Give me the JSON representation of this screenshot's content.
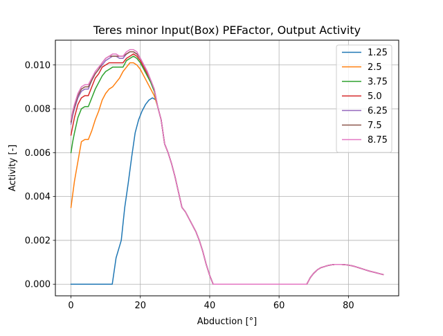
{
  "chart_data": {
    "type": "line",
    "title": "Teres minor Input(Box) PEFactor, Output Activity",
    "xlabel": "Abduction [°]",
    "ylabel": "Activity [-]",
    "xlim": [
      -4.5,
      94.5
    ],
    "ylim": [
      -0.00053,
      0.01113
    ],
    "xticks": [
      0,
      20,
      40,
      60,
      80
    ],
    "xtick_labels": [
      "0",
      "20",
      "40",
      "60",
      "80"
    ],
    "yticks": [
      0.0,
      0.002,
      0.004,
      0.006,
      0.008,
      0.01
    ],
    "ytick_labels": [
      "0.000",
      "0.002",
      "0.004",
      "0.006",
      "0.008",
      "0.010"
    ],
    "grid": true,
    "legend_position": "top-right",
    "shared_tail": {
      "x": [
        25,
        26,
        27,
        28,
        29,
        30,
        31,
        32,
        33,
        34,
        35,
        36,
        37,
        38,
        39,
        40,
        41,
        45,
        50,
        55,
        60,
        65,
        68,
        69,
        70,
        71,
        72,
        73,
        74,
        75,
        76,
        77,
        78,
        79,
        80,
        81,
        82,
        83,
        84,
        85,
        86,
        87,
        88,
        89,
        90
      ],
      "y": [
        0.0081,
        0.0075,
        0.0064,
        0.006,
        0.0055,
        0.0049,
        0.0042,
        0.0035,
        0.0033,
        0.003,
        0.0027,
        0.0024,
        0.002,
        0.0015,
        0.0009,
        0.0004,
        0.0,
        0.0,
        0.0,
        0.0,
        0.0,
        0.0,
        0.0,
        0.0003,
        0.0005,
        0.00065,
        0.00075,
        0.0008,
        0.00085,
        0.00088,
        0.0009,
        0.0009,
        0.0009,
        0.00089,
        0.00087,
        0.00084,
        0.0008,
        0.00075,
        0.0007,
        0.00065,
        0.0006,
        0.00056,
        0.00052,
        0.00048,
        0.00044
      ]
    },
    "series": [
      {
        "name": "1.25",
        "color": "#1f77b4",
        "x": [
          0,
          2,
          4,
          6,
          8,
          10,
          11.9,
          13,
          14.5,
          15.5,
          16.5,
          17.5,
          18.5,
          19.5,
          20.5,
          21.5,
          22.5,
          23.5,
          24.5
        ],
        "y": [
          0.0,
          0.0,
          0.0,
          0.0,
          0.0,
          0.0,
          0.0,
          0.0012,
          0.002,
          0.0035,
          0.0046,
          0.0058,
          0.0069,
          0.0075,
          0.0079,
          0.0082,
          0.0084,
          0.0085,
          0.0084
        ]
      },
      {
        "name": "2.5",
        "color": "#ff7f0e",
        "x": [
          0,
          0.5,
          1,
          2,
          3,
          4,
          5,
          6,
          7,
          8,
          9,
          10,
          11,
          12,
          13,
          14,
          15,
          16,
          17,
          18,
          19,
          20,
          21,
          22,
          23,
          24
        ],
        "y": [
          0.0035,
          0.0041,
          0.0047,
          0.0056,
          0.0065,
          0.0066,
          0.0066,
          0.007,
          0.0075,
          0.0079,
          0.0084,
          0.0087,
          0.0089,
          0.009,
          0.0092,
          0.0094,
          0.0097,
          0.0099,
          0.0101,
          0.0101,
          0.01,
          0.0098,
          0.0095,
          0.0092,
          0.0089,
          0.0086
        ]
      },
      {
        "name": "3.75",
        "color": "#2ca02c",
        "x": [
          0,
          0.5,
          1,
          2,
          3,
          4,
          5,
          6,
          7,
          8,
          9,
          10,
          11,
          12,
          13,
          14,
          15,
          16,
          17,
          18,
          19,
          20,
          21,
          22,
          23,
          24
        ],
        "y": [
          0.006,
          0.0065,
          0.0069,
          0.0076,
          0.008,
          0.0081,
          0.0081,
          0.0085,
          0.0089,
          0.0092,
          0.0095,
          0.0097,
          0.0098,
          0.0099,
          0.0099,
          0.0099,
          0.0099,
          0.0102,
          0.0103,
          0.0104,
          0.0103,
          0.0101,
          0.0098,
          0.0095,
          0.0092,
          0.0088
        ]
      },
      {
        "name": "5.0",
        "color": "#d62728",
        "x": [
          0,
          0.5,
          1,
          2,
          3,
          4,
          5,
          6,
          7,
          8,
          9,
          10,
          11,
          12,
          13,
          14,
          15,
          16,
          17,
          18,
          19,
          20,
          21,
          22,
          23,
          24
        ],
        "y": [
          0.0068,
          0.0072,
          0.0076,
          0.0082,
          0.0085,
          0.0086,
          0.0086,
          0.009,
          0.0094,
          0.0096,
          0.0099,
          0.01,
          0.0101,
          0.0101,
          0.0101,
          0.0101,
          0.0101,
          0.0103,
          0.0104,
          0.0105,
          0.0104,
          0.0102,
          0.0099,
          0.0096,
          0.0093,
          0.0089
        ]
      },
      {
        "name": "6.25",
        "color": "#9467bd",
        "x": [
          0,
          0.5,
          1,
          2,
          3,
          4,
          5,
          6,
          7,
          8,
          9,
          10,
          11,
          12,
          13,
          14,
          15,
          16,
          17,
          18,
          19,
          20,
          21,
          22,
          23,
          24
        ],
        "y": [
          0.0073,
          0.0077,
          0.008,
          0.0085,
          0.0088,
          0.0089,
          0.0089,
          0.0093,
          0.0096,
          0.0098,
          0.01,
          0.0102,
          0.0103,
          0.0104,
          0.0104,
          0.0103,
          0.0103,
          0.0105,
          0.0106,
          0.0106,
          0.0105,
          0.0103,
          0.01,
          0.0097,
          0.0093,
          0.0089
        ]
      },
      {
        "name": "7.5",
        "color": "#8c564b",
        "x": [
          0,
          0.5,
          1,
          2,
          3,
          4,
          5,
          6,
          7,
          8,
          9,
          10,
          11,
          12,
          13,
          14,
          15,
          16,
          17,
          18,
          19,
          20,
          21,
          22,
          23,
          24
        ],
        "y": [
          0.0074,
          0.0078,
          0.0081,
          0.0086,
          0.0089,
          0.009,
          0.009,
          0.0093,
          0.0096,
          0.0098,
          0.0101,
          0.0103,
          0.0104,
          0.0104,
          0.0104,
          0.0104,
          0.0104,
          0.0105,
          0.0106,
          0.0106,
          0.0105,
          0.0103,
          0.01,
          0.0097,
          0.0093,
          0.0089
        ]
      },
      {
        "name": "8.75",
        "color": "#e377c2",
        "x": [
          0,
          0.5,
          1,
          2,
          3,
          4,
          5,
          6,
          7,
          8,
          9,
          10,
          11,
          12,
          13,
          14,
          15,
          16,
          17,
          18,
          19,
          20,
          21,
          22,
          23,
          24
        ],
        "y": [
          0.0075,
          0.0079,
          0.0082,
          0.0087,
          0.009,
          0.0091,
          0.0091,
          0.0094,
          0.0097,
          0.0099,
          0.0101,
          0.0103,
          0.0104,
          0.0105,
          0.0105,
          0.0104,
          0.0104,
          0.0106,
          0.0107,
          0.0107,
          0.0106,
          0.0103,
          0.01,
          0.0097,
          0.0093,
          0.0089
        ]
      }
    ]
  }
}
